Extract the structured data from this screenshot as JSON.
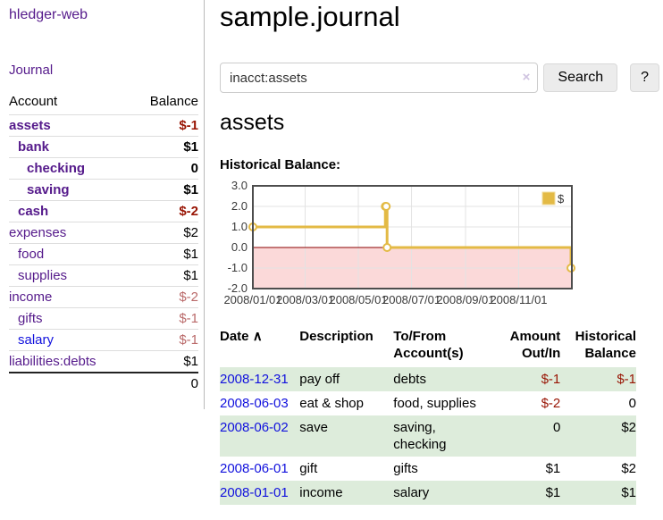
{
  "app": {
    "brand": "hledger-web",
    "nav_journal": "Journal"
  },
  "sidebar": {
    "header": {
      "account": "Account",
      "balance": "Balance"
    },
    "rows": [
      {
        "name": "assets",
        "balance": "$-1",
        "depth": 1,
        "bold": true,
        "link_color": "purple",
        "balance_color": "negative-strong"
      },
      {
        "name": "bank",
        "balance": "$1",
        "depth": 2,
        "bold": true,
        "link_color": "purple",
        "balance_color": "normal"
      },
      {
        "name": "checking",
        "balance": "0",
        "depth": 3,
        "bold": true,
        "link_color": "purple",
        "balance_color": "normal"
      },
      {
        "name": "saving",
        "balance": "$1",
        "depth": 3,
        "bold": true,
        "link_color": "purple",
        "balance_color": "normal"
      },
      {
        "name": "cash",
        "balance": "$-2",
        "depth": 2,
        "bold": true,
        "link_color": "purple",
        "balance_color": "negative-strong"
      },
      {
        "name": "expenses",
        "balance": "$2",
        "depth": 1,
        "bold": false,
        "link_color": "purple",
        "balance_color": "normal"
      },
      {
        "name": "food",
        "balance": "$1",
        "depth": 2,
        "bold": false,
        "link_color": "purple",
        "balance_color": "normal"
      },
      {
        "name": "supplies",
        "balance": "$1",
        "depth": 2,
        "bold": false,
        "link_color": "purple",
        "balance_color": "normal"
      },
      {
        "name": "income",
        "balance": "$-2",
        "depth": 1,
        "bold": false,
        "link_color": "purple",
        "balance_color": "negative-muted"
      },
      {
        "name": "gifts",
        "balance": "$-1",
        "depth": 2,
        "bold": false,
        "link_color": "purple",
        "balance_color": "negative-muted"
      },
      {
        "name": "salary",
        "balance": "$-1",
        "depth": 2,
        "bold": false,
        "link_color": "blue",
        "balance_color": "negative-muted"
      },
      {
        "name": "liabilities:debts",
        "balance": "$1",
        "depth": 1,
        "bold": false,
        "link_color": "purple",
        "balance_color": "normal"
      }
    ],
    "total": "0"
  },
  "header": {
    "title": "sample.journal"
  },
  "search": {
    "value": "inacct:assets",
    "clear_icon": "×",
    "button_label": "Search",
    "help_label": "?"
  },
  "account_page": {
    "title": "assets",
    "chart_label": "Historical Balance:"
  },
  "chart_data": {
    "type": "line",
    "step": true,
    "title": "Historical Balance",
    "x_range": [
      "2008-01-01",
      "2009-01-01"
    ],
    "ylim": [
      -2.0,
      3.0
    ],
    "y_ticks": [
      3.0,
      2.0,
      1.0,
      0.0,
      -1.0,
      -2.0
    ],
    "x_tick_labels": [
      "2008/01/01",
      "2008/03/01",
      "2008/05/01",
      "2008/07/01",
      "2008/09/01",
      "2008/11/01"
    ],
    "grid": true,
    "legend_position": "top-right",
    "zero_line_color": "#8b0000",
    "negative_region_color": "#fbd9d9",
    "series": [
      {
        "name": "$",
        "color": "#e3ba45",
        "points": [
          {
            "date": "2008-01-01",
            "value": 1
          },
          {
            "date": "2008-06-01",
            "value": 2
          },
          {
            "date": "2008-06-02",
            "value": 2
          },
          {
            "date": "2008-06-03",
            "value": 0
          },
          {
            "date": "2008-12-31",
            "value": -1
          }
        ]
      }
    ]
  },
  "transactions": {
    "headers": {
      "date": "Date",
      "date_sort_icon": "∧",
      "description": "Description",
      "tofrom": "To/From Account(s)",
      "amount": "Amount Out/In",
      "balance": "Historical Balance"
    },
    "rows": [
      {
        "date": "2008-12-31",
        "description": "pay off",
        "accounts": "debts",
        "amount": "$-1",
        "balance": "$-1",
        "amount_negative": true,
        "balance_negative": true
      },
      {
        "date": "2008-06-03",
        "description": "eat & shop",
        "accounts": "food, supplies",
        "amount": "$-2",
        "balance": "0",
        "amount_negative": true,
        "balance_negative": false
      },
      {
        "date": "2008-06-02",
        "description": "save",
        "accounts": "saving, checking",
        "amount": "0",
        "balance": "$2",
        "amount_negative": false,
        "balance_negative": false
      },
      {
        "date": "2008-06-01",
        "description": "gift",
        "accounts": "gifts",
        "amount": "$1",
        "balance": "$2",
        "amount_negative": false,
        "balance_negative": false
      },
      {
        "date": "2008-01-01",
        "description": "income",
        "accounts": "salary",
        "amount": "$1",
        "balance": "$1",
        "amount_negative": false,
        "balance_negative": false
      }
    ]
  },
  "colors": {
    "link_purple": "#551a8b",
    "link_blue": "#1111dd",
    "negative_strong": "#981403",
    "negative_muted": "#ba6a6a",
    "row_stripe_green": "#ddecdb",
    "chart_line_gold": "#e3ba45",
    "chart_negative_fill": "#fbd9d9",
    "chart_zero_line": "#8b0000"
  }
}
